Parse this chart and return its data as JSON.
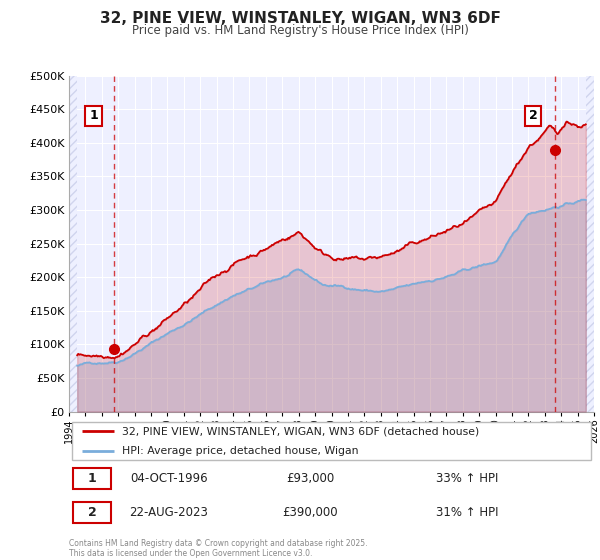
{
  "title": "32, PINE VIEW, WINSTANLEY, WIGAN, WN3 6DF",
  "subtitle": "Price paid vs. HM Land Registry's House Price Index (HPI)",
  "legend_label_red": "32, PINE VIEW, WINSTANLEY, WIGAN, WN3 6DF (detached house)",
  "legend_label_blue": "HPI: Average price, detached house, Wigan",
  "sale1_label": "1",
  "sale1_date": "04-OCT-1996",
  "sale1_price": "£93,000",
  "sale1_hpi": "33% ↑ HPI",
  "sale2_label": "2",
  "sale2_date": "22-AUG-2023",
  "sale2_price": "£390,000",
  "sale2_hpi": "31% ↑ HPI",
  "copyright": "Contains HM Land Registry data © Crown copyright and database right 2025.\nThis data is licensed under the Open Government Licence v3.0.",
  "xlim": [
    1994,
    2026
  ],
  "ylim": [
    0,
    500000
  ],
  "ytick_vals": [
    0,
    50000,
    100000,
    150000,
    200000,
    250000,
    300000,
    350000,
    400000,
    450000,
    500000
  ],
  "ytick_labels": [
    "£0",
    "£50K",
    "£100K",
    "£150K",
    "£200K",
    "£250K",
    "£300K",
    "£350K",
    "£400K",
    "£450K",
    "£500K"
  ],
  "xticks": [
    1994,
    1995,
    1996,
    1997,
    1998,
    1999,
    2000,
    2001,
    2002,
    2003,
    2004,
    2005,
    2006,
    2007,
    2008,
    2009,
    2010,
    2011,
    2012,
    2013,
    2014,
    2015,
    2016,
    2017,
    2018,
    2019,
    2020,
    2021,
    2022,
    2023,
    2024,
    2025,
    2026
  ],
  "red_color": "#cc0000",
  "blue_color": "#7aaddb",
  "sale1_x": 1996.75,
  "sale1_y": 93000,
  "sale2_x": 2023.63,
  "sale2_y": 390000,
  "vline1_x": 1996.75,
  "vline2_x": 2023.63,
  "bg_color": "#eef0ff",
  "hatch_color": "#d0d4ee",
  "grid_color": "#ffffff",
  "data_start": 1994.5,
  "data_end": 2025.5
}
